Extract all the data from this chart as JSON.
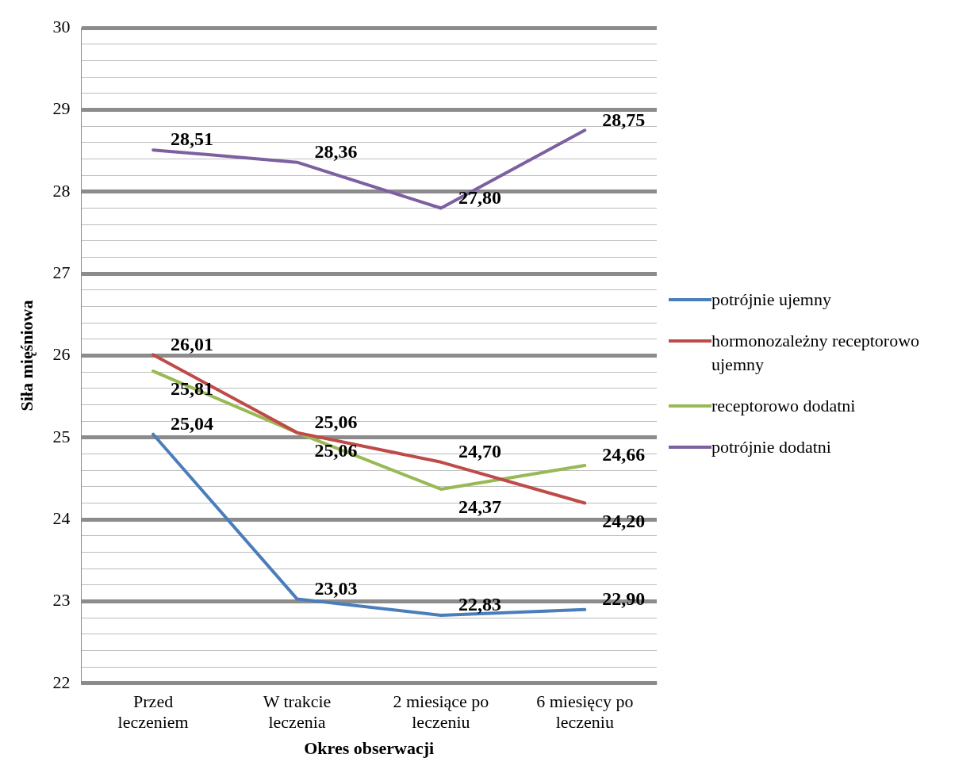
{
  "chart_data": {
    "type": "line",
    "xlabel": "Okres obserwacji",
    "ylabel": "Siła mięśniowa",
    "categories": [
      "Przed leczeniem",
      "W trakcie leczenia",
      "2 miesiące po leczeniu",
      "6 miesięcy po leczeniu"
    ],
    "series": [
      {
        "name": "potrójnie ujemny",
        "color": "#4a7ebb",
        "values": [
          25.04,
          23.03,
          22.83,
          22.9
        ],
        "value_labels": [
          "25,04",
          "23,03",
          "22,83",
          "22,90"
        ]
      },
      {
        "name": "hormonozależny receptorowo ujemny",
        "color": "#be4b48",
        "values": [
          26.01,
          25.06,
          24.7,
          24.2
        ],
        "value_labels": [
          "26,01",
          "25,06",
          "24,70",
          "24,20"
        ]
      },
      {
        "name": "receptorowo dodatni",
        "color": "#98b954",
        "values": [
          25.81,
          25.06,
          24.37,
          24.66
        ],
        "value_labels": [
          "25,81",
          "25,06",
          "24,37",
          "24,66"
        ]
      },
      {
        "name": "potrójnie dodatni",
        "color": "#7d60a0",
        "values": [
          28.51,
          28.36,
          27.8,
          28.75
        ],
        "value_labels": [
          "28,51",
          "28,36",
          "27,80",
          "28,75"
        ]
      }
    ],
    "ylim": [
      22,
      30
    ],
    "yticks": [
      22,
      {
        "value": 22.2,
        "label": null
      },
      {
        "value": 22.4,
        "label": null
      },
      {
        "value": 22.6,
        "label": null
      },
      {
        "value": 22.8,
        "label": null
      },
      23,
      {
        "value": 23.2,
        "label": null
      },
      {
        "value": 23.4,
        "label": null
      },
      {
        "value": 23.6,
        "label": null
      },
      {
        "value": 23.8,
        "label": null
      },
      24,
      {
        "value": 24.2,
        "label": null
      },
      {
        "value": 24.4,
        "label": null
      },
      {
        "value": 24.6,
        "label": null
      },
      {
        "value": 24.8,
        "label": null
      },
      25,
      {
        "value": 25.2,
        "label": null
      },
      {
        "value": 25.4,
        "label": null
      },
      {
        "value": 25.6,
        "label": null
      },
      {
        "value": 25.8,
        "label": null
      },
      26,
      {
        "value": 26.2,
        "label": null
      },
      {
        "value": 26.4,
        "label": null
      },
      {
        "value": 26.6,
        "label": null
      },
      {
        "value": 26.8,
        "label": null
      },
      27,
      {
        "value": 27.2,
        "label": null
      },
      {
        "value": 27.4,
        "label": null
      },
      {
        "value": 27.6,
        "label": null
      },
      {
        "value": 27.8,
        "label": null
      },
      28,
      {
        "value": 28.2,
        "label": null
      },
      {
        "value": 28.4,
        "label": null
      },
      {
        "value": 28.6,
        "label": null
      },
      {
        "value": 28.8,
        "label": null
      },
      29,
      {
        "value": 29.2,
        "label": null
      },
      {
        "value": 29.4,
        "label": null
      },
      {
        "value": 29.6,
        "label": null
      },
      {
        "value": 29.8,
        "label": null
      },
      30
    ],
    "grid": "y",
    "legend": "right",
    "marker": "none",
    "line_style": "solid"
  }
}
